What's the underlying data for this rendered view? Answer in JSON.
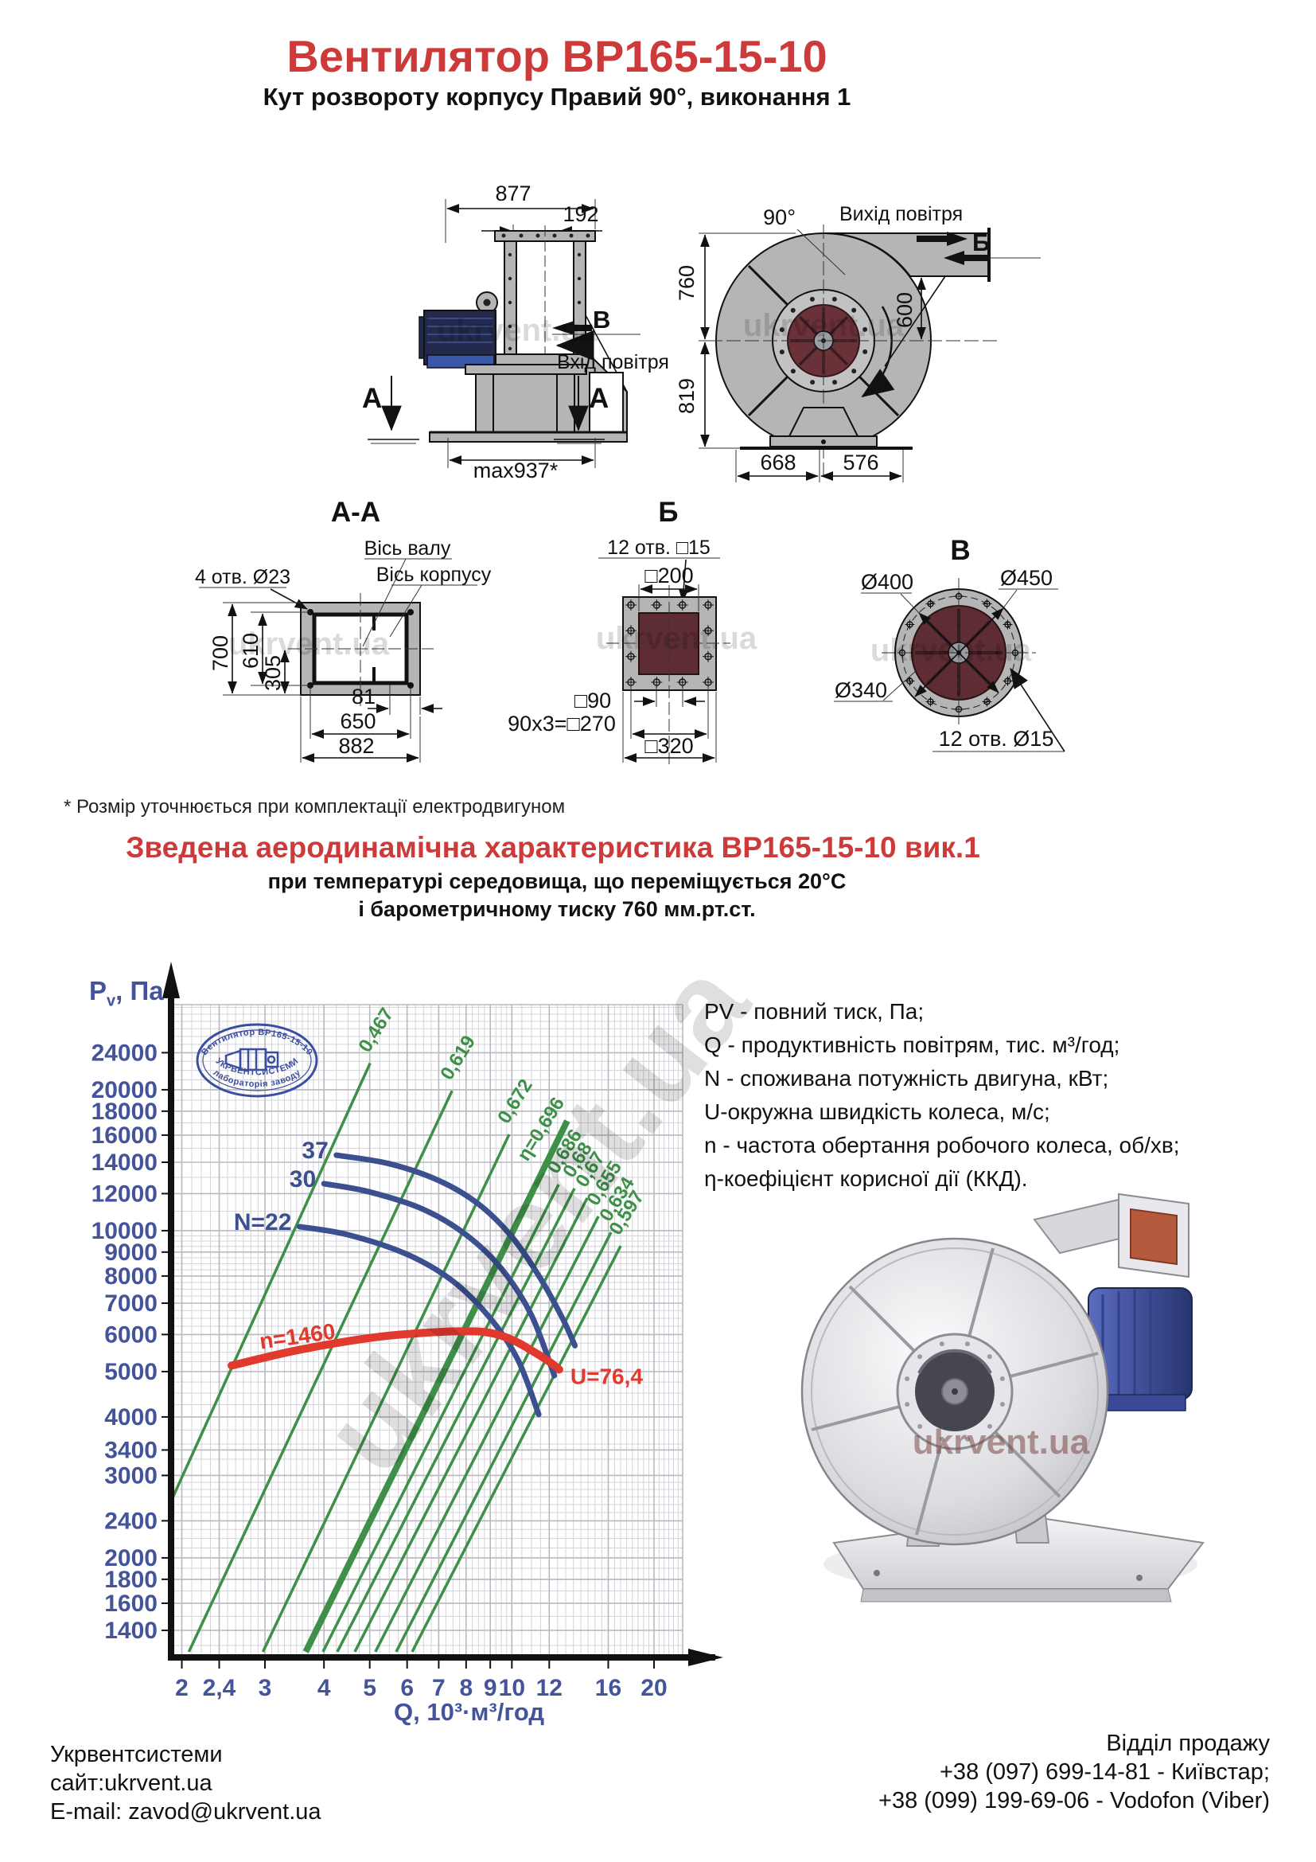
{
  "page": {
    "title": "Вентилятор ВР165-15-10",
    "subtitle": "Кут розвороту корпусу Правий 90°, виконання 1"
  },
  "footnote": "* Розмір уточнюється при комплектації електродвигуном",
  "aero_heading": {
    "title": "Зведена аеродинамічна характеристика ВР165-15-10 вик.1",
    "line1": "при температурі середовища, що переміщується 20°С",
    "line2": "і барометричному тиску 760 мм.рт.ст."
  },
  "drawings": {
    "watermark": "ukrvent.ua",
    "side_view": {
      "dim_877": "877",
      "dim_192": "192",
      "dim_max937": "max937*",
      "label_v": "В",
      "label_inlet": "Вхід повітря",
      "label_a_left": "А",
      "label_a_right": "А"
    },
    "front_view": {
      "angle": "90°",
      "label_outlet": "Вихід повітря",
      "label_b": "Б",
      "dim_760": "760",
      "dim_600": "600",
      "dim_819": "819",
      "dim_668": "668",
      "dim_576": "576"
    },
    "section_aa": {
      "title": "А-А",
      "label_shaft_axis": "Вісь валу",
      "label_body_axis": "Вісь корпусу",
      "label_holes": "4 отв. Ø23",
      "dim_700": "700",
      "dim_610": "610",
      "dim_305": "305",
      "dim_81": "81",
      "dim_650": "650",
      "dim_882": "882"
    },
    "flange_b": {
      "title": "Б",
      "label_holes": "12 отв. □15",
      "dim_200": "□200",
      "dim_90": "□90",
      "dim_270": "90х3=□270",
      "dim_320": "□320"
    },
    "flange_v": {
      "title": "В",
      "dim_400": "Ø400",
      "dim_450": "Ø450",
      "dim_340": "Ø340",
      "label_holes": "12 отв. Ø15"
    }
  },
  "chart_data": {
    "type": "line",
    "title": "Зведена аеродинамічна характеристика ВР165-15-10 вик.1",
    "xlabel": "Q, 10³·м³/год",
    "ylabel_p": "P",
    "ylabel_sub": "v",
    "ylabel_rest": ", Па",
    "x_scale": "log",
    "y_scale": "log",
    "xlim": [
      1.92,
      23
    ],
    "ylim": [
      1245,
      30400
    ],
    "x_ticks": [
      2,
      2.4,
      3,
      4,
      5,
      6,
      7,
      8,
      9,
      10,
      12,
      16,
      20
    ],
    "x_tick_labels": [
      "2",
      "2,4",
      "3",
      "4",
      "5",
      "6",
      "7",
      "8",
      "9",
      "10",
      "12",
      "16",
      "20"
    ],
    "y_ticks": [
      1400,
      1600,
      1800,
      2000,
      2400,
      3000,
      3400,
      4000,
      5000,
      6000,
      7000,
      8000,
      9000,
      10000,
      12000,
      14000,
      16000,
      18000,
      20000,
      24000
    ],
    "grid": true,
    "series": [
      {
        "name": "N=37",
        "label": "37",
        "color": "#3c5090",
        "width": 7,
        "points": [
          [
            4.25,
            14500
          ],
          [
            5.5,
            13900
          ],
          [
            7,
            12800
          ],
          [
            8.5,
            11400
          ],
          [
            10,
            9700
          ],
          [
            11.5,
            7900
          ],
          [
            12.8,
            6500
          ],
          [
            13.6,
            5680
          ]
        ]
      },
      {
        "name": "N=30",
        "label": "30",
        "color": "#3c5090",
        "width": 7,
        "points": [
          [
            4.0,
            12600
          ],
          [
            5,
            12100
          ],
          [
            6.5,
            11100
          ],
          [
            8,
            9800
          ],
          [
            9.5,
            8300
          ],
          [
            11,
            6600
          ],
          [
            12.3,
            4900
          ]
        ]
      },
      {
        "name": "N=22",
        "label": "N=22",
        "color": "#3c5090",
        "width": 7,
        "points": [
          [
            3.55,
            10200
          ],
          [
            4.5,
            9800
          ],
          [
            6,
            8900
          ],
          [
            7.5,
            7800
          ],
          [
            9,
            6500
          ],
          [
            10.3,
            5300
          ],
          [
            11.4,
            4050
          ]
        ]
      },
      {
        "name": "n=1460",
        "label": "n=1460",
        "end_label": "U=76,4",
        "color": "#e0392e",
        "width": 10,
        "points": [
          [
            2.55,
            5150
          ],
          [
            3.5,
            5550
          ],
          [
            5,
            5900
          ],
          [
            6.5,
            6050
          ],
          [
            8,
            6100
          ],
          [
            9,
            6050
          ],
          [
            10,
            5850
          ],
          [
            11,
            5550
          ],
          [
            12,
            5250
          ],
          [
            12.6,
            5050
          ]
        ]
      }
    ],
    "efficiency_lines": [
      {
        "label": "0,467",
        "q": [
          1.9,
          5.01
        ],
        "p": [
          2650,
          22800
        ],
        "thick": false
      },
      {
        "label": "0,619",
        "q": [
          2.07,
          7.47
        ],
        "p": [
          1260,
          19900
        ],
        "thick": false
      },
      {
        "label": "0,672",
        "q": [
          2.97,
          9.87
        ],
        "p": [
          1260,
          16060
        ],
        "thick": false
      },
      {
        "label": "η=0,696",
        "q": [
          3.66,
          13.1
        ],
        "p": [
          1260,
          17160
        ],
        "thick": true
      },
      {
        "label": "0,686",
        "q": [
          3.98,
          12.56
        ],
        "p": [
          1260,
          12550
        ],
        "thick": false
      },
      {
        "label": "0,68",
        "q": [
          4.27,
          13.57
        ],
        "p": [
          1260,
          12310
        ],
        "thick": false
      },
      {
        "label": "0,67",
        "q": [
          4.65,
          14.44
        ],
        "p": [
          1260,
          11740
        ],
        "thick": false
      },
      {
        "label": "0,655",
        "q": [
          5.14,
          15.25
        ],
        "p": [
          1260,
          10730
        ],
        "thick": false
      },
      {
        "label": "0,634",
        "q": [
          5.69,
          16.22
        ],
        "p": [
          1260,
          9920
        ],
        "thick": false
      },
      {
        "label": "0,597",
        "q": [
          6.15,
          17.0
        ],
        "p": [
          1260,
          9280
        ],
        "thick": false
      }
    ],
    "watermark": "ukrvent.ua",
    "stamp": {
      "line1": "Вентилятор ВР165-15-10",
      "line2": "лабораторія заводу",
      "line3": "УКРВЕНТСИСТЕМИ"
    }
  },
  "legend": {
    "lines": [
      "PV - повний тиск, Па;",
      "Q - продуктивність повітрям, тис. м³/год;",
      "N - споживана потужність двигуна, кВт;",
      "U-окружна швидкість колеса, м/с;",
      "n - частота обертання робочого колеса, об/хв;",
      "η-коефіцієнт корисної дії (ККД)."
    ]
  },
  "footer": {
    "company": "Укрвентсистеми",
    "site": "сайт:ukrvent.ua",
    "email": "E-mail: zavod@ukrvent.ua",
    "sales_title": "Відділ продажу",
    "phone1": "+38 (097) 699-14-81 - Київстар;",
    "phone2": "+38 (099) 199-69-06 - Vodofon (Viber)"
  },
  "colors": {
    "accent_red": "#cc3a3a",
    "chart_blue": "#3c5090",
    "chart_green": "#3e9048",
    "curve_red": "#e0392e",
    "axis_label_blue": "#44549a",
    "drawing_grey": "#b5b5b5",
    "flange_dark_red": "#5e2c33"
  }
}
